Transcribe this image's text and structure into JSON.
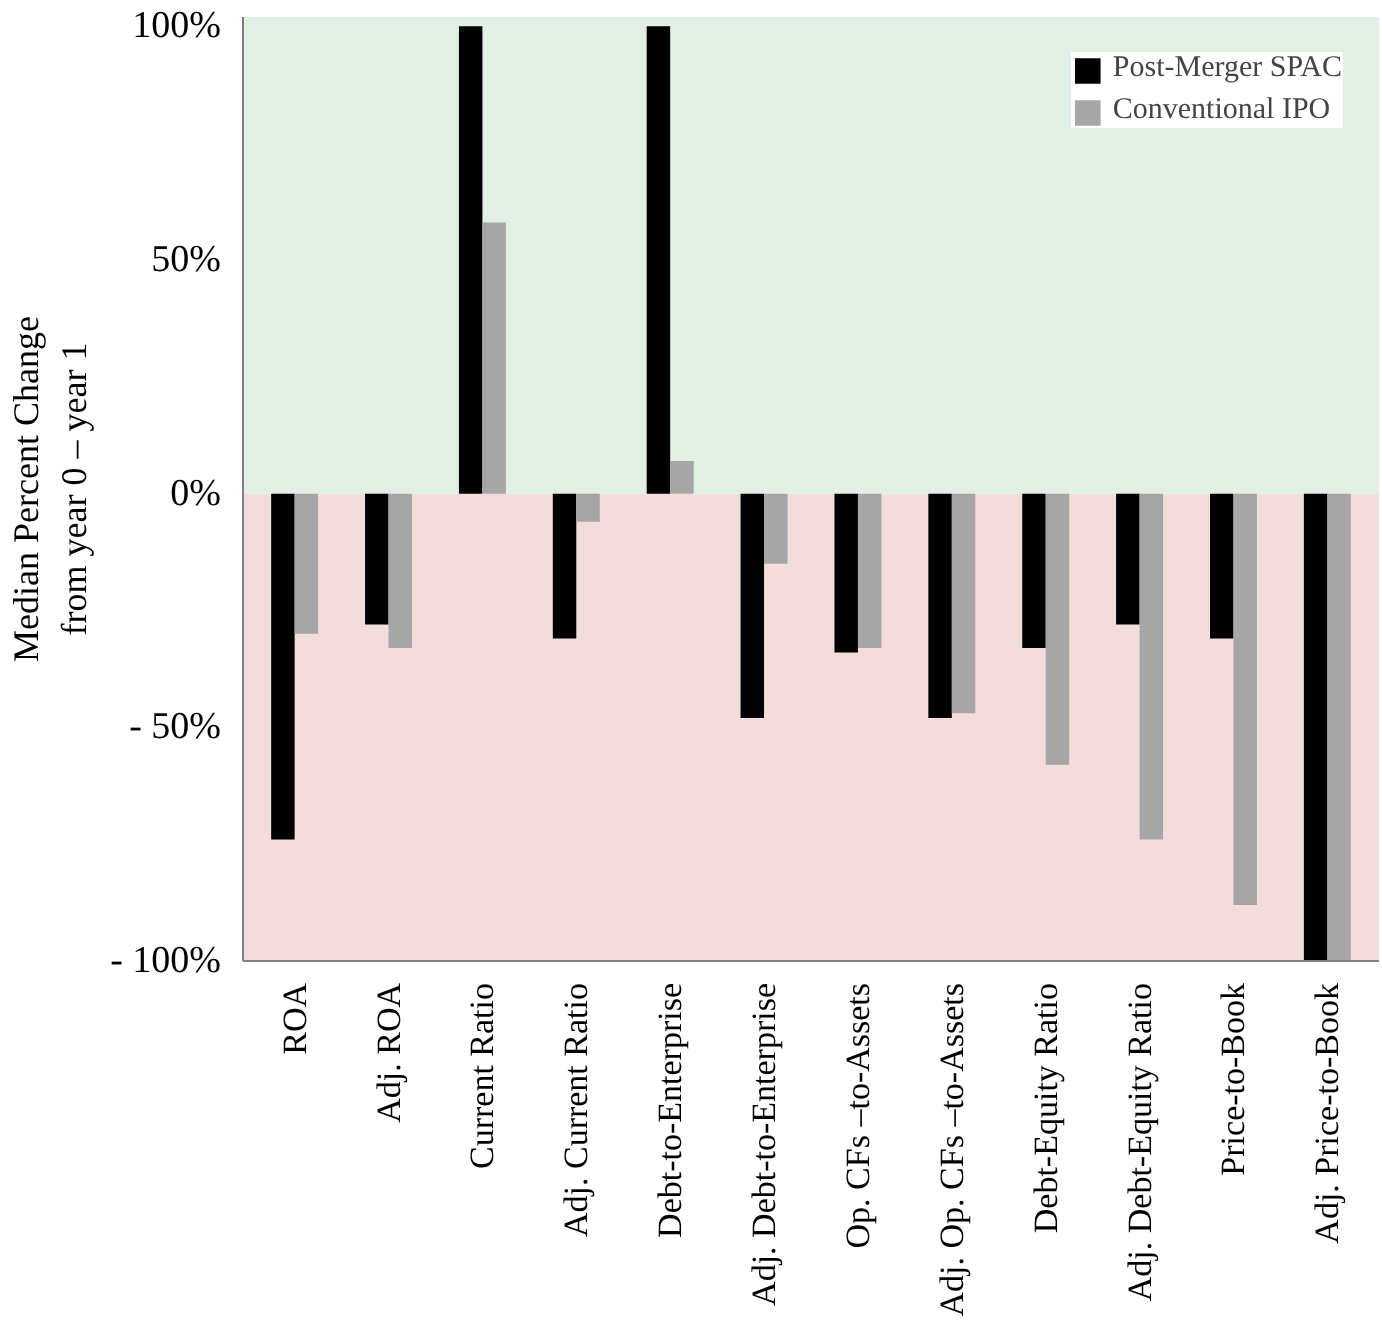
{
  "chart_data": {
    "type": "bar",
    "ylabel": "Median Percent Change\nfrom year 0 – year 1",
    "categories": [
      "ROA",
      "Adj. ROA",
      "Current Ratio",
      "Adj. Current Ratio",
      "Debt-to-Enterprise",
      "Adj. Debt-to-Enterprise",
      "Op. CFs –to-Assets",
      "Adj. Op. CFs –to-Assets",
      "Debt-Equity Ratio",
      "Adj. Debt-Equity Ratio",
      "Price-to-Book",
      "Adj. Price-to-Book"
    ],
    "series": [
      {
        "name": "Post-Merger SPAC",
        "color": "#000000",
        "values": [
          -74,
          -28,
          100,
          -31,
          100,
          -48,
          -34,
          -48,
          -33,
          -28,
          -31,
          -100
        ]
      },
      {
        "name": "Conventional IPO",
        "color": "#a6a6a6",
        "values": [
          -30,
          -33,
          58,
          -6,
          7,
          -15,
          -33,
          -47,
          -58,
          -74,
          -88,
          -100
        ]
      }
    ],
    "ylim": [
      -100,
      102
    ],
    "yticks": [
      {
        "value": -100,
        "label": "- 100%"
      },
      {
        "value": -50,
        "label": "- 50%"
      },
      {
        "value": 0,
        "label": "0%"
      },
      {
        "value": 50,
        "label": "50%"
      },
      {
        "value": 100,
        "label": "100%"
      }
    ],
    "bands": [
      {
        "axis": "y",
        "from": 0,
        "to": 102,
        "color": "#e2efe5"
      },
      {
        "axis": "y",
        "from": -100,
        "to": 0,
        "color": "#f2dcdc"
      }
    ],
    "legend": "top right"
  }
}
